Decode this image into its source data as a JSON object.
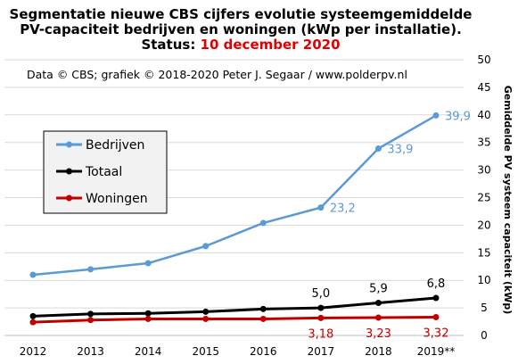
{
  "title": {
    "line1": "Segmentatie nieuwe CBS cijfers evolutie systeemgemiddelde",
    "line2": "PV-capaciteit bedrijven en woningen (kWp per installatie).",
    "status_prefix": "Status: ",
    "status_date": "10 december 2020"
  },
  "credit": "Data © CBS; grafiek © 2018-2020 Peter J. Segaar / www.polderpv.nl",
  "colors": {
    "bedrijven": "#5b9bd5",
    "totaal": "#000000",
    "woningen": "#c00000",
    "date": "#e00000",
    "grid": "#d9d9d9"
  },
  "chart_data": {
    "type": "line",
    "categories": [
      "2012",
      "2013",
      "2014",
      "2015",
      "2016",
      "2017",
      "2018",
      "2019**"
    ],
    "ylabel": "Gemiddelde PV systeem capaciteit (kWp)",
    "ylim": [
      0,
      50
    ],
    "yticks": [
      "0",
      "5",
      "10",
      "15",
      "20",
      "25",
      "30",
      "35",
      "40",
      "45",
      "50"
    ],
    "grid": true,
    "legend_position": "left",
    "series": [
      {
        "name": "Bedrijven",
        "key": "bedrijven",
        "values": [
          11.0,
          12.0,
          13.1,
          16.2,
          20.4,
          23.2,
          33.9,
          39.9
        ],
        "labels": [
          "",
          "",
          "",
          "",
          "",
          "23,2",
          "33,9",
          "39,9"
        ]
      },
      {
        "name": "Totaal",
        "key": "totaal",
        "values": [
          3.5,
          3.9,
          4.0,
          4.3,
          4.8,
          5.0,
          5.9,
          6.8
        ],
        "labels": [
          "",
          "",
          "",
          "",
          "",
          "5,0",
          "5,9",
          "6,8"
        ]
      },
      {
        "name": "Woningen",
        "key": "woningen",
        "values": [
          2.4,
          2.8,
          3.0,
          3.0,
          3.0,
          3.18,
          3.23,
          3.32
        ],
        "labels": [
          "",
          "",
          "",
          "",
          "",
          "3,18",
          "3,23",
          "3,32"
        ]
      }
    ]
  }
}
